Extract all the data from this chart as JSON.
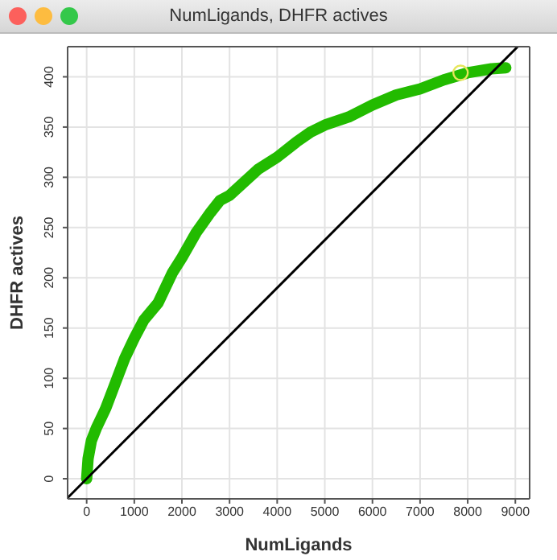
{
  "chart_data": {
    "type": "line",
    "title": "NumLigands, DHFR actives",
    "xlabel": "NumLigands",
    "ylabel": "DHFR actives",
    "xlim": [
      -400,
      9300
    ],
    "ylim": [
      -20,
      430
    ],
    "xticks": [
      0,
      1000,
      2000,
      3000,
      4000,
      5000,
      6000,
      7000,
      8000,
      9000
    ],
    "yticks": [
      0,
      50,
      100,
      150,
      200,
      250,
      300,
      350,
      400
    ],
    "grid": true,
    "marker": "none",
    "line_style": "solid",
    "series": [
      {
        "color": "#22bb00",
        "x": [
          0,
          30,
          100,
          200,
          400,
          600,
          800,
          1000,
          1200,
          1500,
          1800,
          2000,
          2300,
          2600,
          2800,
          3000,
          3300,
          3600,
          4000,
          4400,
          4700,
          5000,
          5500,
          6000,
          6500,
          7000,
          7500,
          8000,
          8500,
          8800
        ],
        "values": [
          0,
          20,
          38,
          50,
          70,
          95,
          120,
          140,
          158,
          175,
          205,
          220,
          245,
          265,
          277,
          282,
          295,
          308,
          320,
          335,
          345,
          352,
          360,
          372,
          382,
          388,
          397,
          404,
          408,
          409
        ]
      },
      {
        "color": "#000000",
        "x": [
          -400,
          9050
        ],
        "values": [
          -19,
          430
        ]
      },
      {
        "type": "scatter",
        "marker": "circle",
        "color": "#e6e65a",
        "x": [
          7850
        ],
        "values": [
          404
        ]
      }
    ]
  }
}
